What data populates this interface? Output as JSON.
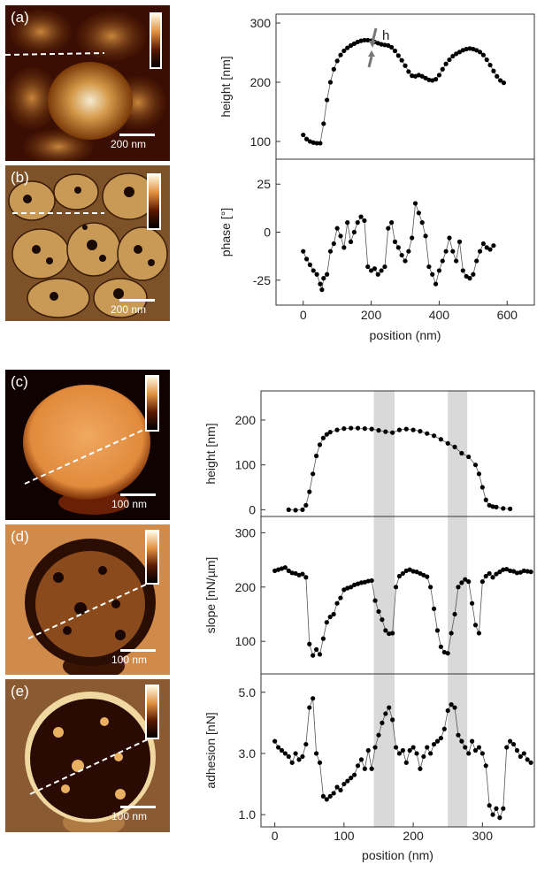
{
  "panels": [
    {
      "id": "a",
      "label": "(a)",
      "scale_text": "200 nm"
    },
    {
      "id": "b",
      "label": "(b)",
      "scale_text": "200 nm"
    },
    {
      "id": "c",
      "label": "(c)",
      "scale_text": "100 nm"
    },
    {
      "id": "d",
      "label": "(d)",
      "scale_text": "100 nm"
    },
    {
      "id": "e",
      "label": "(e)",
      "scale_text": "100 nm"
    }
  ],
  "colors": {
    "trace": "#000000",
    "shade": "#d9d9d9",
    "arrow": "#777777",
    "axis": "#333333"
  },
  "chart_data": [
    {
      "type": "scatter",
      "xlabel": "position (nm)",
      "xlim": [
        -80,
        680
      ],
      "xticks": [
        0,
        200,
        400,
        600
      ],
      "xtick_labels": [
        "0",
        "200",
        "400",
        "600"
      ],
      "annotation": "h",
      "subplots": [
        {
          "ylabel": "height [nm]",
          "ylim": [
            70,
            315
          ],
          "yticks": [
            100,
            200,
            300
          ],
          "ytick_labels": [
            "100",
            "200",
            "300"
          ],
          "x": [
            0,
            10,
            20,
            30,
            40,
            50,
            60,
            70,
            80,
            90,
            100,
            110,
            120,
            130,
            140,
            150,
            160,
            170,
            180,
            190,
            200,
            210,
            220,
            230,
            240,
            250,
            260,
            270,
            280,
            290,
            300,
            310,
            320,
            330,
            340,
            350,
            360,
            370,
            380,
            390,
            400,
            410,
            420,
            430,
            440,
            450,
            460,
            470,
            480,
            490,
            500,
            510,
            520,
            530,
            540,
            550,
            560,
            570,
            580,
            590
          ],
          "y": [
            111,
            104,
            100,
            98,
            97,
            97,
            130,
            170,
            200,
            222,
            236,
            246,
            253,
            258,
            262,
            265,
            268,
            270,
            271,
            271,
            270,
            268,
            266,
            264,
            263,
            262,
            259,
            253,
            245,
            237,
            228,
            218,
            211,
            210,
            212,
            210,
            207,
            204,
            203,
            205,
            212,
            222,
            231,
            238,
            244,
            248,
            251,
            254,
            256,
            257,
            256,
            254,
            251,
            246,
            238,
            229,
            219,
            210,
            203,
            199
          ]
        },
        {
          "ylabel": "phase [°]",
          "ylim": [
            -38,
            38
          ],
          "yticks": [
            -25,
            0,
            25
          ],
          "ytick_labels": [
            "-25",
            "0",
            "25"
          ],
          "x": [
            0,
            10,
            20,
            30,
            40,
            50,
            55,
            60,
            70,
            80,
            90,
            100,
            110,
            120,
            130,
            140,
            150,
            160,
            170,
            180,
            190,
            200,
            210,
            220,
            230,
            240,
            250,
            260,
            270,
            280,
            290,
            300,
            310,
            320,
            330,
            340,
            350,
            360,
            370,
            380,
            390,
            400,
            410,
            420,
            430,
            440,
            450,
            460,
            470,
            480,
            490,
            500,
            510,
            520,
            530,
            540,
            550,
            560
          ],
          "y": [
            -10,
            -14,
            -17,
            -20,
            -22,
            -27,
            -30,
            -24,
            -22,
            -10,
            -6,
            2,
            -2,
            -8,
            5,
            -5,
            0,
            5,
            8,
            6,
            -18,
            -20,
            -19,
            -22,
            -20,
            -18,
            2,
            5,
            -5,
            -8,
            -12,
            -15,
            -10,
            -3,
            15,
            10,
            5,
            -2,
            -18,
            -22,
            -27,
            -20,
            -15,
            -10,
            -3,
            -10,
            -15,
            -5,
            -20,
            -23,
            -24,
            -22,
            -15,
            -10,
            -6,
            -8,
            -9,
            -7
          ]
        }
      ]
    },
    {
      "type": "scatter",
      "xlabel": "position (nm)",
      "xlim": [
        -20,
        375
      ],
      "xticks": [
        0,
        100,
        200,
        300
      ],
      "xtick_labels": [
        "0",
        "100",
        "200",
        "300"
      ],
      "shaded_regions": [
        [
          143,
          173
        ],
        [
          250,
          278
        ]
      ],
      "subplots": [
        {
          "ylabel": "height [nm]",
          "ylim": [
            -15,
            265
          ],
          "yticks": [
            0,
            100,
            200
          ],
          "ytick_labels": [
            "0",
            "100",
            "200"
          ],
          "x": [
            20,
            30,
            40,
            45,
            50,
            55,
            60,
            65,
            70,
            75,
            80,
            90,
            100,
            110,
            120,
            130,
            140,
            150,
            160,
            170,
            180,
            190,
            200,
            210,
            220,
            230,
            240,
            250,
            260,
            270,
            280,
            290,
            295,
            300,
            305,
            310,
            315,
            320,
            330,
            340
          ],
          "y": [
            0,
            -1,
            0,
            10,
            40,
            80,
            120,
            145,
            160,
            168,
            173,
            178,
            181,
            182,
            182,
            181,
            180,
            177,
            174,
            172,
            178,
            180,
            178,
            175,
            170,
            165,
            157,
            148,
            140,
            126,
            118,
            100,
            80,
            50,
            22,
            10,
            7,
            6,
            3,
            2
          ]
        },
        {
          "ylabel": "slope [nN/µm]",
          "ylim": [
            40,
            330
          ],
          "yticks": [
            100,
            200,
            300
          ],
          "ytick_labels": [
            "100",
            "200",
            "300"
          ],
          "x": [
            0,
            5,
            10,
            15,
            20,
            25,
            30,
            35,
            40,
            45,
            50,
            55,
            60,
            65,
            70,
            75,
            80,
            85,
            90,
            95,
            100,
            105,
            110,
            115,
            120,
            125,
            130,
            135,
            140,
            145,
            150,
            155,
            160,
            165,
            170,
            175,
            180,
            185,
            190,
            195,
            200,
            205,
            210,
            215,
            220,
            225,
            230,
            235,
            240,
            245,
            250,
            255,
            260,
            265,
            270,
            275,
            280,
            285,
            290,
            295,
            300,
            305,
            310,
            315,
            320,
            325,
            330,
            335,
            340,
            345,
            350,
            355,
            360,
            365,
            370
          ],
          "y": [
            230,
            232,
            234,
            236,
            230,
            226,
            225,
            222,
            224,
            218,
            95,
            74,
            85,
            76,
            105,
            135,
            145,
            150,
            170,
            180,
            195,
            198,
            200,
            204,
            206,
            208,
            209,
            211,
            212,
            175,
            155,
            140,
            120,
            114,
            115,
            200,
            220,
            225,
            230,
            232,
            229,
            228,
            225,
            222,
            219,
            200,
            160,
            120,
            90,
            80,
            78,
            115,
            150,
            200,
            208,
            214,
            210,
            170,
            130,
            115,
            210,
            220,
            225,
            218,
            224,
            228,
            232,
            233,
            230,
            229,
            226,
            227,
            230,
            229,
            228
          ]
        },
        {
          "ylabel": "adhesion [nN]",
          "ylim": [
            0.6,
            5.6
          ],
          "yticks": [
            1.0,
            3.0,
            5.0
          ],
          "ytick_labels": [
            "1.0",
            "3.0",
            "5.0"
          ],
          "x": [
            0,
            5,
            10,
            15,
            20,
            25,
            30,
            35,
            40,
            45,
            50,
            55,
            60,
            65,
            70,
            75,
            80,
            85,
            90,
            95,
            100,
            105,
            110,
            115,
            120,
            125,
            130,
            135,
            140,
            145,
            150,
            155,
            160,
            165,
            170,
            175,
            180,
            185,
            190,
            195,
            200,
            205,
            210,
            215,
            220,
            225,
            230,
            235,
            240,
            245,
            250,
            255,
            260,
            265,
            270,
            275,
            280,
            285,
            290,
            295,
            300,
            305,
            310,
            315,
            320,
            325,
            330,
            335,
            340,
            345,
            350,
            355,
            360,
            365,
            370
          ],
          "y": [
            3.4,
            3.2,
            3.1,
            3.0,
            2.9,
            2.7,
            3.0,
            2.8,
            2.9,
            3.3,
            4.5,
            4.8,
            3.0,
            2.7,
            1.6,
            1.5,
            1.6,
            1.7,
            1.9,
            1.8,
            2.0,
            2.1,
            2.2,
            2.3,
            2.6,
            2.8,
            2.5,
            3.1,
            2.5,
            3.2,
            3.6,
            4.0,
            4.3,
            4.5,
            4.1,
            3.2,
            3.0,
            3.1,
            2.7,
            3.1,
            3.2,
            3.0,
            2.5,
            2.9,
            3.2,
            3.0,
            3.3,
            3.4,
            3.5,
            3.8,
            4.4,
            4.6,
            4.5,
            3.6,
            3.4,
            3.2,
            3.0,
            3.4,
            3.1,
            3.2,
            3.0,
            2.6,
            1.3,
            1.0,
            1.2,
            0.9,
            1.2,
            3.2,
            3.4,
            3.3,
            3.1,
            2.9,
            3.0,
            2.8,
            2.7
          ]
        }
      ]
    }
  ]
}
